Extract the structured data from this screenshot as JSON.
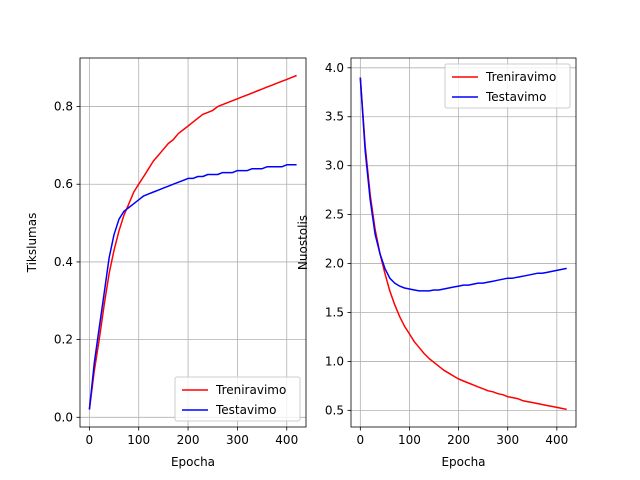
{
  "chart_data": [
    {
      "type": "line",
      "title": "",
      "xlabel": "Epocha",
      "ylabel": "Tikslumas",
      "xlim": [
        -19,
        439
      ],
      "ylim": [
        -0.025,
        0.925
      ],
      "xticks": [
        0,
        100,
        200,
        300,
        400
      ],
      "yticks": [
        0.0,
        0.2,
        0.4,
        0.6,
        0.8
      ],
      "xtick_labels": [
        "0",
        "100",
        "200",
        "300",
        "400"
      ],
      "ytick_labels": [
        "0.0",
        "0.2",
        "0.4",
        "0.6",
        "0.8"
      ],
      "grid": true,
      "legend_position": "lower-right",
      "series": [
        {
          "name": "Treniravimo",
          "color": "#ff0000",
          "x": [
            0,
            10,
            20,
            30,
            40,
            50,
            60,
            70,
            80,
            90,
            100,
            110,
            120,
            130,
            140,
            150,
            160,
            170,
            180,
            190,
            200,
            210,
            220,
            230,
            240,
            250,
            260,
            270,
            280,
            290,
            300,
            310,
            320,
            330,
            340,
            350,
            360,
            370,
            380,
            390,
            400,
            410,
            420
          ],
          "y": [
            0.02,
            0.12,
            0.2,
            0.29,
            0.37,
            0.43,
            0.48,
            0.52,
            0.55,
            0.58,
            0.6,
            0.62,
            0.64,
            0.66,
            0.675,
            0.69,
            0.705,
            0.715,
            0.73,
            0.74,
            0.75,
            0.76,
            0.77,
            0.78,
            0.785,
            0.79,
            0.8,
            0.805,
            0.81,
            0.815,
            0.82,
            0.825,
            0.83,
            0.835,
            0.84,
            0.845,
            0.85,
            0.855,
            0.86,
            0.865,
            0.87,
            0.875,
            0.88
          ]
        },
        {
          "name": "Testavimo",
          "color": "#0000ff",
          "x": [
            0,
            10,
            20,
            30,
            40,
            50,
            60,
            70,
            80,
            90,
            100,
            110,
            120,
            130,
            140,
            150,
            160,
            170,
            180,
            190,
            200,
            210,
            220,
            230,
            240,
            250,
            260,
            270,
            280,
            290,
            300,
            310,
            320,
            330,
            340,
            350,
            360,
            370,
            380,
            390,
            400,
            410,
            420
          ],
          "y": [
            0.02,
            0.14,
            0.23,
            0.32,
            0.41,
            0.47,
            0.51,
            0.53,
            0.54,
            0.55,
            0.56,
            0.57,
            0.575,
            0.58,
            0.585,
            0.59,
            0.595,
            0.6,
            0.605,
            0.61,
            0.615,
            0.615,
            0.62,
            0.62,
            0.625,
            0.625,
            0.625,
            0.63,
            0.63,
            0.63,
            0.635,
            0.635,
            0.635,
            0.64,
            0.64,
            0.64,
            0.645,
            0.645,
            0.645,
            0.645,
            0.65,
            0.65,
            0.65
          ]
        }
      ]
    },
    {
      "type": "line",
      "title": "",
      "xlabel": "Epocha",
      "ylabel": "Nuostolis",
      "xlim": [
        -19,
        439
      ],
      "ylim": [
        0.33,
        4.1
      ],
      "xticks": [
        0,
        100,
        200,
        300,
        400
      ],
      "yticks": [
        0.5,
        1.0,
        1.5,
        2.0,
        2.5,
        3.0,
        3.5,
        4.0
      ],
      "xtick_labels": [
        "0",
        "100",
        "200",
        "300",
        "400"
      ],
      "ytick_labels": [
        "0.5",
        "1.0",
        "1.5",
        "2.0",
        "2.5",
        "3.0",
        "3.5",
        "4.0"
      ],
      "grid": true,
      "legend_position": "upper-right",
      "series": [
        {
          "name": "Treniravimo",
          "color": "#ff0000",
          "x": [
            0,
            10,
            20,
            30,
            40,
            50,
            60,
            70,
            80,
            90,
            100,
            110,
            120,
            130,
            140,
            150,
            160,
            170,
            180,
            190,
            200,
            210,
            220,
            230,
            240,
            250,
            260,
            270,
            280,
            290,
            300,
            310,
            320,
            330,
            340,
            350,
            360,
            370,
            380,
            390,
            400,
            410,
            420
          ],
          "y": [
            3.9,
            3.2,
            2.7,
            2.35,
            2.1,
            1.9,
            1.72,
            1.58,
            1.46,
            1.36,
            1.28,
            1.2,
            1.14,
            1.08,
            1.03,
            0.99,
            0.95,
            0.91,
            0.88,
            0.85,
            0.82,
            0.8,
            0.78,
            0.76,
            0.74,
            0.72,
            0.7,
            0.69,
            0.67,
            0.66,
            0.64,
            0.63,
            0.62,
            0.6,
            0.59,
            0.58,
            0.57,
            0.56,
            0.55,
            0.54,
            0.53,
            0.52,
            0.51
          ]
        },
        {
          "name": "Testavimo",
          "color": "#0000ff",
          "x": [
            0,
            10,
            20,
            30,
            40,
            50,
            60,
            70,
            80,
            90,
            100,
            110,
            120,
            130,
            140,
            150,
            160,
            170,
            180,
            190,
            200,
            210,
            220,
            230,
            240,
            250,
            260,
            270,
            280,
            290,
            300,
            310,
            320,
            330,
            340,
            350,
            360,
            370,
            380,
            390,
            400,
            410,
            420
          ],
          "y": [
            3.9,
            3.15,
            2.65,
            2.3,
            2.1,
            1.95,
            1.85,
            1.8,
            1.77,
            1.75,
            1.74,
            1.73,
            1.72,
            1.72,
            1.72,
            1.73,
            1.73,
            1.74,
            1.75,
            1.76,
            1.77,
            1.78,
            1.78,
            1.79,
            1.8,
            1.8,
            1.81,
            1.82,
            1.83,
            1.84,
            1.85,
            1.85,
            1.86,
            1.87,
            1.88,
            1.89,
            1.9,
            1.9,
            1.91,
            1.92,
            1.93,
            1.94,
            1.95
          ]
        }
      ]
    }
  ]
}
